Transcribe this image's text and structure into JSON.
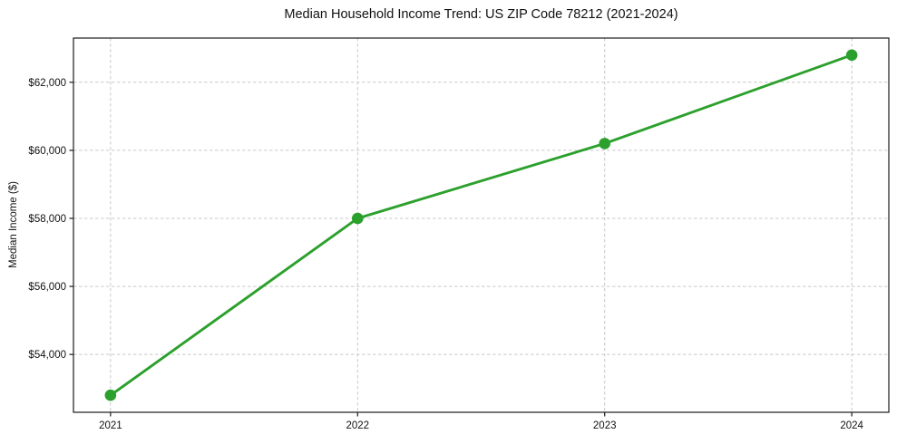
{
  "chart_data": {
    "type": "line",
    "title": "Median Household Income Trend: US ZIP Code 78212 (2021-2024)",
    "xlabel": "",
    "ylabel": "Median Income ($)",
    "x": [
      2021,
      2022,
      2023,
      2024
    ],
    "x_tick_labels": [
      "2021",
      "2022",
      "2023",
      "2024"
    ],
    "series": [
      {
        "name": "median-household-income",
        "values": [
          52800,
          58000,
          60200,
          62800
        ]
      }
    ],
    "yticks": [
      54000,
      56000,
      58000,
      60000,
      62000
    ],
    "ytick_labels": [
      "$54,000",
      "$56,000",
      "$58,000",
      "$60,000",
      "$62,000"
    ],
    "xlim": [
      2020.85,
      2024.15
    ],
    "ylim": [
      52300,
      63300
    ],
    "grid": true,
    "grid_style": "dashed",
    "legend": "none",
    "marker": "circle"
  },
  "colors": {
    "line": "#2ca02c",
    "marker": "#2ca02c",
    "grid": "#c9c9c9",
    "spine": "#1a1a1a",
    "text": "#111111",
    "background": "#ffffff"
  }
}
